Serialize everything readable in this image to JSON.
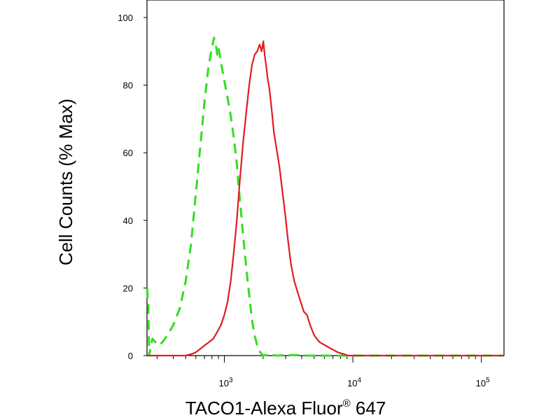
{
  "chart_data": {
    "type": "line",
    "title": "",
    "xlabel": "TACO1-Alexa Fluor",
    "xlabel_superscript": "®",
    "xlabel_suffix": " 647",
    "ylabel": "Cell Counts (% Max)",
    "x_scale": "log",
    "xlim": [
      250,
      150000
    ],
    "ylim": [
      0,
      100
    ],
    "x_ticks": [
      {
        "base": "10",
        "exp": "3",
        "value": 1000
      },
      {
        "base": "10",
        "exp": "4",
        "value": 10000
      },
      {
        "base": "10",
        "exp": "5",
        "value": 100000
      }
    ],
    "y_ticks": [
      "0",
      "20",
      "40",
      "60",
      "80",
      "100"
    ],
    "grid": false,
    "series": [
      {
        "style": "dashed",
        "color": "#33dd22",
        "x": [
          250,
          256,
          260,
          275,
          290,
          310,
          330,
          360,
          400,
          450,
          500,
          550,
          600,
          650,
          700,
          750,
          790,
          830,
          860,
          880,
          900,
          930,
          980,
          1050,
          1120,
          1180,
          1240,
          1300,
          1360,
          1420,
          1500,
          1580,
          1650,
          1720,
          1800,
          1900,
          2000,
          2200,
          2600,
          3200,
          4500,
          7000,
          12000,
          50000,
          150000
        ],
        "y": [
          20,
          15,
          0,
          5,
          4,
          3,
          4,
          6,
          9,
          14,
          22,
          33,
          48,
          62,
          75,
          85,
          90,
          94,
          92,
          89,
          91,
          88,
          83,
          77,
          71,
          65,
          58,
          49,
          41,
          33,
          24,
          16,
          10,
          6,
          3,
          1,
          0,
          0.3,
          0,
          0.2,
          0,
          0,
          0,
          0,
          0
        ]
      },
      {
        "style": "solid",
        "color": "#e11b22",
        "x": [
          250,
          300,
          400,
          500,
          560,
          600,
          650,
          700,
          760,
          820,
          880,
          940,
          1000,
          1060,
          1120,
          1180,
          1250,
          1320,
          1400,
          1480,
          1560,
          1640,
          1720,
          1800,
          1880,
          1950,
          2010,
          2060,
          2110,
          2170,
          2240,
          2330,
          2430,
          2550,
          2680,
          2820,
          2970,
          3130,
          3300,
          3500,
          3700,
          3920,
          4150,
          4400,
          4650,
          5000,
          5500,
          6100,
          6800,
          7600,
          8400,
          9200,
          10000,
          20000,
          50000,
          150000
        ],
        "y": [
          0,
          0,
          0,
          0,
          0.5,
          1,
          2,
          3,
          4,
          5,
          7,
          9,
          12,
          16,
          22,
          30,
          40,
          52,
          63,
          72,
          80,
          86,
          89,
          90,
          92,
          90,
          93,
          89,
          86,
          82,
          79,
          73,
          66,
          61,
          56,
          49,
          42,
          34,
          27,
          22,
          19,
          16,
          13,
          12,
          9,
          6,
          4,
          3,
          2,
          1,
          0.5,
          0,
          0,
          0,
          0,
          0
        ]
      }
    ]
  }
}
